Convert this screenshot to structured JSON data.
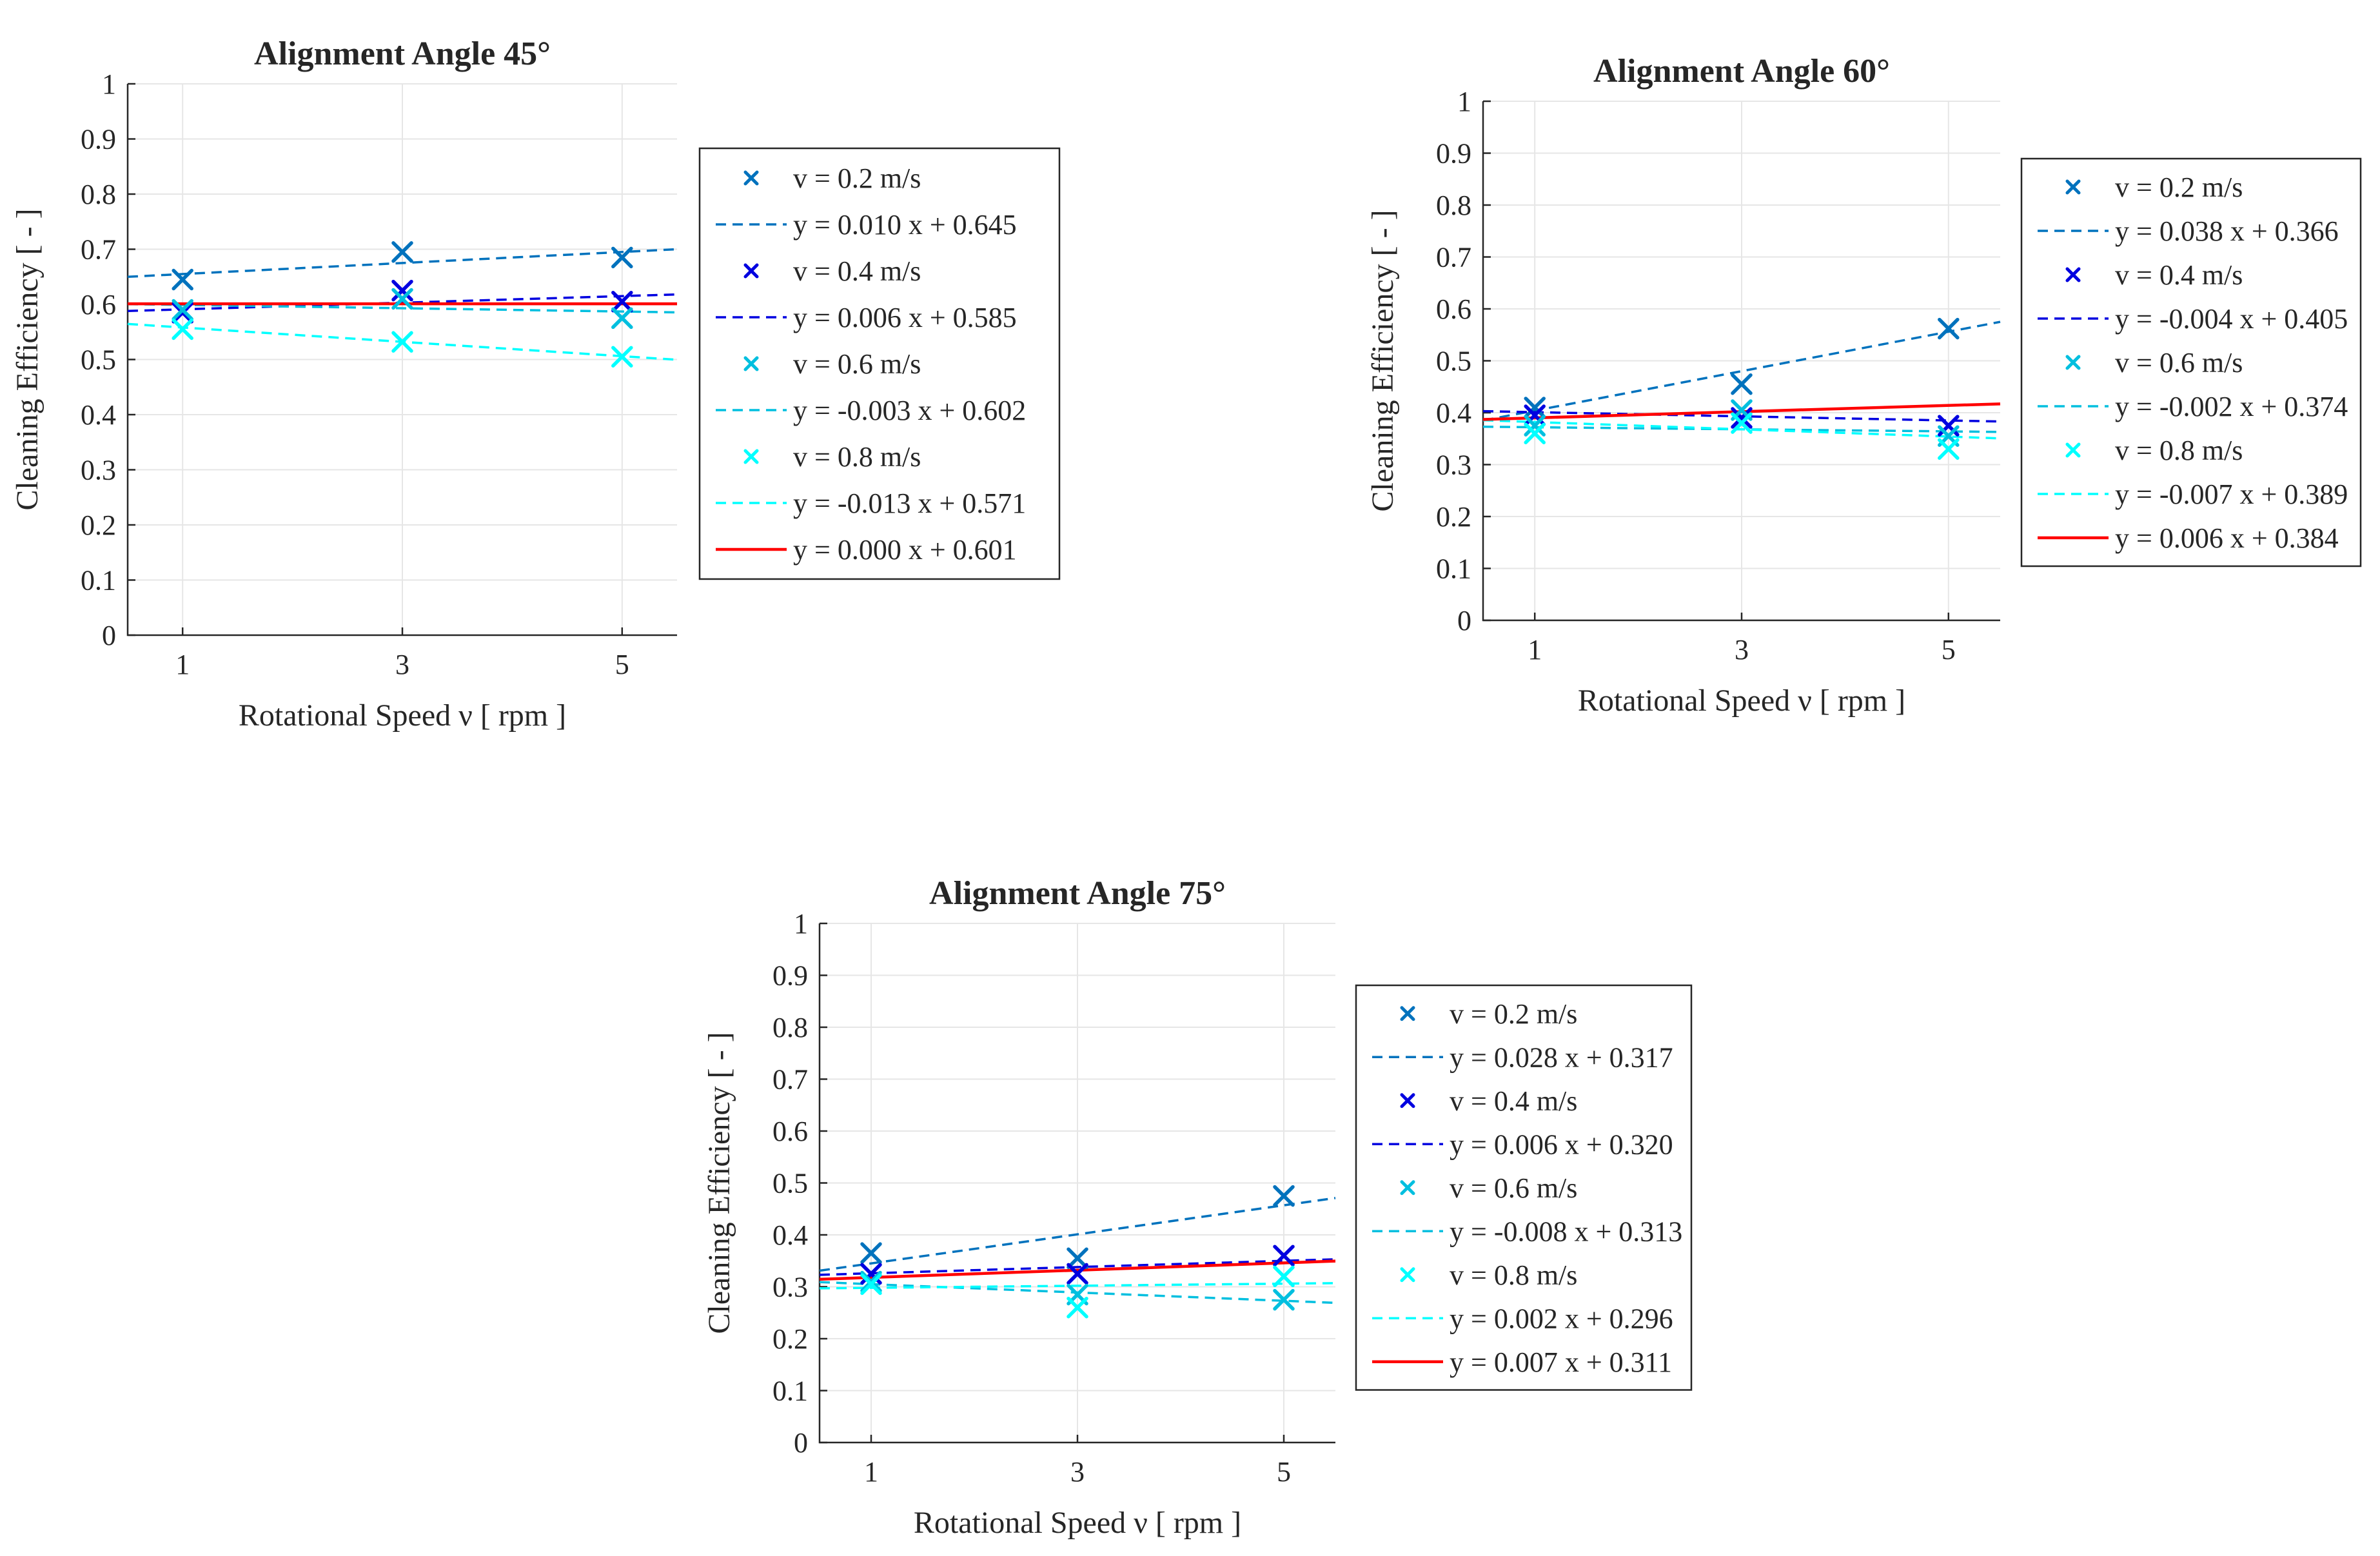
{
  "colors": {
    "v02": "#0072BD",
    "v04": "#0000E0",
    "v06": "#00BFDF",
    "v08": "#00FFFF",
    "overall": "#FF0000"
  },
  "chart_data": [
    {
      "type": "scatter",
      "title": "Alignment Angle 45°",
      "xlabel": "Rotational Speed ν [ rpm ]",
      "ylabel": "Cleaning Efficiency [ - ]",
      "xlim": [
        0.5,
        5.5
      ],
      "ylim": [
        0,
        1
      ],
      "xticks": [
        "1",
        "3",
        "5"
      ],
      "yticks": [
        "0",
        "0.1",
        "0.2",
        "0.3",
        "0.4",
        "0.5",
        "0.6",
        "0.7",
        "0.8",
        "0.9",
        "1"
      ],
      "x": [
        1,
        3,
        5
      ],
      "series": [
        {
          "name": "v = 0.2 m/s",
          "fit_label": "y = 0.010 x + 0.645",
          "color": "v02",
          "values": [
            0.645,
            0.695,
            0.685
          ],
          "slope": 0.01,
          "intercept": 0.645
        },
        {
          "name": "v = 0.4 m/s",
          "fit_label": "y = 0.006 x + 0.585",
          "color": "v04",
          "values": [
            0.585,
            0.625,
            0.605
          ],
          "slope": 0.006,
          "intercept": 0.585
        },
        {
          "name": "v = 0.6 m/s",
          "fit_label": "y = -0.003 x + 0.602",
          "color": "v06",
          "values": [
            0.59,
            0.61,
            0.575
          ],
          "slope": -0.003,
          "intercept": 0.602
        },
        {
          "name": "v = 0.8 m/s",
          "fit_label": "y = -0.013 x + 0.571",
          "color": "v08",
          "values": [
            0.555,
            0.532,
            0.505
          ],
          "slope": -0.013,
          "intercept": 0.571
        }
      ],
      "overall_fit": {
        "fit_label": "y = 0.000 x + 0.601",
        "slope": 0.0,
        "intercept": 0.601
      }
    },
    {
      "type": "scatter",
      "title": "Alignment Angle 60°",
      "xlabel": "Rotational Speed ν [ rpm ]",
      "ylabel": "Cleaning Efficiency [ - ]",
      "xlim": [
        0.5,
        5.5
      ],
      "ylim": [
        0,
        1
      ],
      "xticks": [
        "1",
        "3",
        "5"
      ],
      "yticks": [
        "0",
        "0.1",
        "0.2",
        "0.3",
        "0.4",
        "0.5",
        "0.6",
        "0.7",
        "0.8",
        "0.9",
        "1"
      ],
      "x": [
        1,
        3,
        5
      ],
      "series": [
        {
          "name": "v = 0.2 m/s",
          "fit_label": "y = 0.038 x + 0.366",
          "color": "v02",
          "values": [
            0.41,
            0.455,
            0.562
          ],
          "slope": 0.038,
          "intercept": 0.366
        },
        {
          "name": "v = 0.4 m/s",
          "fit_label": "y = -0.004 x + 0.405",
          "color": "v04",
          "values": [
            0.395,
            0.39,
            0.375
          ],
          "slope": -0.004,
          "intercept": 0.405
        },
        {
          "name": "v = 0.6 m/s",
          "fit_label": "y = -0.002 x + 0.374",
          "color": "v06",
          "values": [
            0.375,
            0.405,
            0.355
          ],
          "slope": -0.002,
          "intercept": 0.374
        },
        {
          "name": "v = 0.8 m/s",
          "fit_label": "y = -0.007 x + 0.389",
          "color": "v08",
          "values": [
            0.36,
            0.38,
            0.33
          ],
          "slope": -0.007,
          "intercept": 0.389
        }
      ],
      "overall_fit": {
        "fit_label": "y = 0.006 x + 0.384",
        "slope": 0.006,
        "intercept": 0.384
      }
    },
    {
      "type": "scatter",
      "title": "Alignment Angle 75°",
      "xlabel": "Rotational Speed ν [ rpm ]",
      "ylabel": "Cleaning Efficiency [ - ]",
      "xlim": [
        0.5,
        5.5
      ],
      "ylim": [
        0,
        1
      ],
      "xticks": [
        "1",
        "3",
        "5"
      ],
      "yticks": [
        "0",
        "0.1",
        "0.2",
        "0.3",
        "0.4",
        "0.5",
        "0.6",
        "0.7",
        "0.8",
        "0.9",
        "1"
      ],
      "x": [
        1,
        3,
        5
      ],
      "series": [
        {
          "name": "v = 0.2 m/s",
          "fit_label": "y = 0.028 x + 0.317",
          "color": "v02",
          "values": [
            0.365,
            0.355,
            0.475
          ],
          "slope": 0.028,
          "intercept": 0.317
        },
        {
          "name": "v = 0.4 m/s",
          "fit_label": "y = 0.006 x + 0.320",
          "color": "v04",
          "values": [
            0.325,
            0.325,
            0.36
          ],
          "slope": 0.006,
          "intercept": 0.32
        },
        {
          "name": "v = 0.6 m/s",
          "fit_label": "y = -0.008 x + 0.313",
          "color": "v06",
          "values": [
            0.31,
            0.285,
            0.275
          ],
          "slope": -0.008,
          "intercept": 0.313
        },
        {
          "name": "v = 0.8 m/s",
          "fit_label": "y = 0.002 x + 0.296",
          "color": "v08",
          "values": [
            0.305,
            0.26,
            0.32
          ],
          "slope": 0.002,
          "intercept": 0.296
        }
      ],
      "overall_fit": {
        "fit_label": "y = 0.007 x + 0.311",
        "slope": 0.007,
        "intercept": 0.311
      }
    }
  ]
}
